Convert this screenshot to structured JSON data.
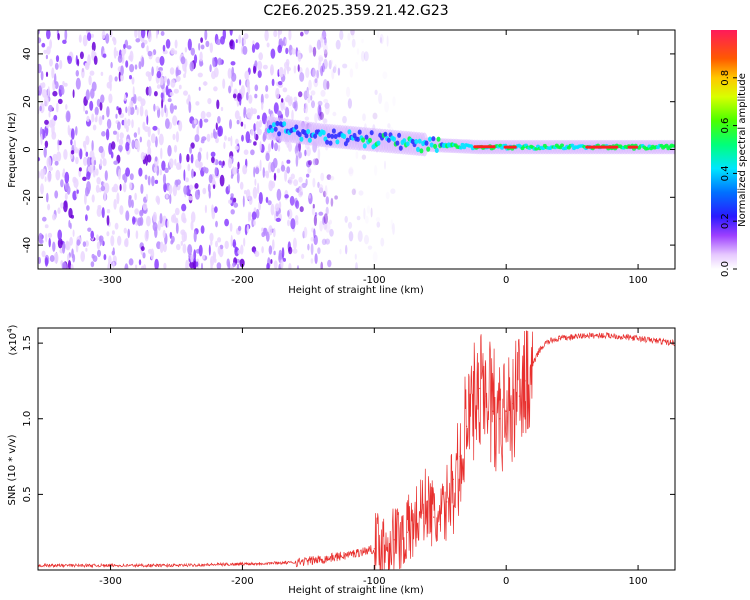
{
  "title": "C2E6.2025.359.21.42.G23",
  "spectrogram": {
    "type": "heatmap",
    "xlabel": "Height of straight line (km)",
    "ylabel": "Frequency (Hz)",
    "xlim": [
      -355,
      128
    ],
    "ylim": [
      -50,
      50
    ],
    "xticks": [
      -300,
      -200,
      -100,
      0,
      100
    ],
    "yticks": [
      -40,
      -20,
      0,
      20,
      40
    ],
    "colorbar": {
      "label": "Normalized spectral amplitude",
      "range": [
        0.0,
        1.0
      ],
      "ticks": [
        0.0,
        0.2,
        0.4,
        0.6,
        0.8
      ],
      "tick_labels": [
        "0.0",
        "0.2",
        "0.4",
        "0.6",
        "0.8"
      ]
    },
    "features": {
      "noise_region_x": [
        -355,
        -135
      ],
      "signal_ridge": {
        "x": [
          -180,
          -140,
          -100,
          -60,
          -20,
          0,
          40,
          80,
          128
        ],
        "center_hz": [
          9,
          6,
          4,
          2,
          1,
          1,
          1,
          1,
          1
        ]
      }
    }
  },
  "chart_data": {
    "type": "line",
    "title": "",
    "xlabel": "Height of straight line (km)",
    "ylabel": "SNR (10 * v/v)",
    "y_scale_label": "(x10",
    "y_scale_exp": "4",
    "y_scale_close": ")",
    "xlim": [
      -355,
      128
    ],
    "ylim": [
      0,
      1.6
    ],
    "xticks": [
      -300,
      -200,
      -100,
      0,
      100
    ],
    "yticks": [
      0.5,
      1.0,
      1.5
    ],
    "ytick_labels": [
      "0.5",
      "1.0",
      "1.5"
    ],
    "series": [
      {
        "name": "SNR",
        "color": "#e8302e",
        "x": [
          -355,
          -300,
          -250,
          -200,
          -160,
          -140,
          -120,
          -100,
          -85,
          -75,
          -70,
          -65,
          -60,
          -55,
          -50,
          -45,
          -40,
          -35,
          -30,
          -25,
          -20,
          -15,
          -10,
          -5,
          0,
          5,
          10,
          15,
          20,
          25,
          30,
          35,
          40,
          60,
          80,
          100,
          128
        ],
        "y": [
          0.03,
          0.03,
          0.03,
          0.04,
          0.05,
          0.07,
          0.1,
          0.14,
          0.2,
          0.25,
          0.3,
          0.38,
          0.45,
          0.35,
          0.3,
          0.45,
          0.6,
          0.75,
          0.95,
          1.1,
          1.2,
          1.15,
          1.05,
          1.0,
          1.05,
          1.1,
          1.15,
          1.25,
          1.35,
          1.45,
          1.5,
          1.52,
          1.53,
          1.55,
          1.55,
          1.53,
          1.5
        ]
      }
    ]
  },
  "colors": {
    "line": "#e8302e",
    "noise": "#6a00d8",
    "ridge_low": "#3030ff",
    "ridge_mid": "#00e5ff",
    "ridge_high": "#00ff40",
    "ridge_peak": "#ff2020"
  }
}
